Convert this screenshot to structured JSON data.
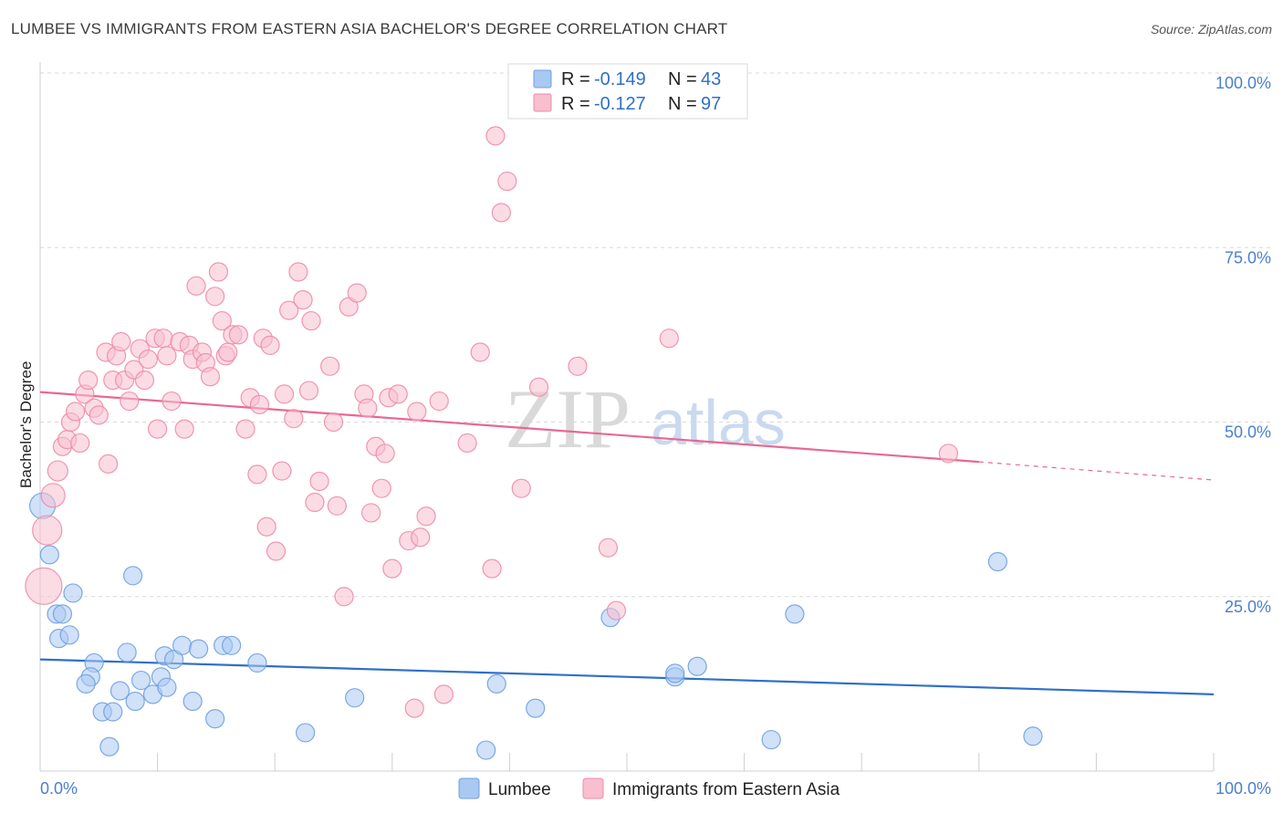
{
  "header": {
    "title": "LUMBEE VS IMMIGRANTS FROM EASTERN ASIA BACHELOR'S DEGREE CORRELATION CHART",
    "source": "Source: ZipAtlas.com"
  },
  "watermark": {
    "zip": "ZIP",
    "atlas": "atlas"
  },
  "legend": {
    "r_label": "R =",
    "n_label": "N =",
    "rows": [
      {
        "r": "-0.149",
        "n": "43",
        "color": "#a9c8f2"
      },
      {
        "r": "-0.127",
        "n": "97",
        "color": "#f7bfd0"
      }
    ]
  },
  "bottom_legend": [
    {
      "label": "Lumbee",
      "color": "#a9c8f2"
    },
    {
      "label": "Immigrants from Eastern Asia",
      "color": "#f7bfd0"
    }
  ],
  "chart_data": {
    "type": "scatter",
    "xlabel": "",
    "ylabel": "Bachelor's Degree",
    "xlim": [
      0,
      100
    ],
    "ylim": [
      0,
      100
    ],
    "x_tick_labels": [
      "0.0%",
      "100.0%"
    ],
    "y_ticks": [
      25,
      50,
      75,
      100
    ],
    "y_tick_labels": [
      "25.0%",
      "50.0%",
      "75.0%",
      "100.0%"
    ],
    "grid": "horizontal dashed",
    "series": [
      {
        "name": "Lumbee",
        "color": "#6fa0e0",
        "fill": "#a9c8f2",
        "trend": {
          "x0": 0,
          "y0": 16.0,
          "x1": 100,
          "y1": 11.0,
          "color": "#2f6fc9"
        },
        "points": [
          {
            "x": 0.2,
            "y": 38.0,
            "s": 14
          },
          {
            "x": 0.8,
            "y": 31.0,
            "s": 10
          },
          {
            "x": 2.8,
            "y": 25.5,
            "s": 10
          },
          {
            "x": 1.4,
            "y": 22.5,
            "s": 10
          },
          {
            "x": 1.9,
            "y": 22.5,
            "s": 10
          },
          {
            "x": 1.6,
            "y": 19.0,
            "s": 10
          },
          {
            "x": 2.5,
            "y": 19.5,
            "s": 10
          },
          {
            "x": 7.9,
            "y": 28.0,
            "s": 10
          },
          {
            "x": 7.4,
            "y": 17.0,
            "s": 10
          },
          {
            "x": 4.6,
            "y": 15.5,
            "s": 10
          },
          {
            "x": 4.3,
            "y": 13.5,
            "s": 10
          },
          {
            "x": 3.9,
            "y": 12.5,
            "s": 10
          },
          {
            "x": 5.3,
            "y": 8.5,
            "s": 10
          },
          {
            "x": 6.2,
            "y": 8.5,
            "s": 10
          },
          {
            "x": 6.8,
            "y": 11.5,
            "s": 10
          },
          {
            "x": 8.1,
            "y": 10.0,
            "s": 10
          },
          {
            "x": 8.6,
            "y": 13.0,
            "s": 10
          },
          {
            "x": 9.6,
            "y": 11.0,
            "s": 10
          },
          {
            "x": 10.3,
            "y": 13.5,
            "s": 10
          },
          {
            "x": 10.6,
            "y": 16.5,
            "s": 10
          },
          {
            "x": 11.4,
            "y": 16.0,
            "s": 10
          },
          {
            "x": 10.8,
            "y": 12.0,
            "s": 10
          },
          {
            "x": 12.1,
            "y": 18.0,
            "s": 10
          },
          {
            "x": 13.0,
            "y": 10.0,
            "s": 10
          },
          {
            "x": 13.5,
            "y": 17.5,
            "s": 10
          },
          {
            "x": 14.9,
            "y": 7.5,
            "s": 10
          },
          {
            "x": 15.6,
            "y": 18.0,
            "s": 10
          },
          {
            "x": 16.3,
            "y": 18.0,
            "s": 10
          },
          {
            "x": 18.5,
            "y": 15.5,
            "s": 10
          },
          {
            "x": 5.9,
            "y": 3.5,
            "s": 10
          },
          {
            "x": 22.6,
            "y": 5.5,
            "s": 10
          },
          {
            "x": 26.8,
            "y": 10.5,
            "s": 10
          },
          {
            "x": 38.0,
            "y": 3.0,
            "s": 10
          },
          {
            "x": 38.9,
            "y": 12.5,
            "s": 10
          },
          {
            "x": 42.2,
            "y": 9.0,
            "s": 10
          },
          {
            "x": 48.6,
            "y": 22.0,
            "s": 10
          },
          {
            "x": 54.1,
            "y": 13.5,
            "s": 10
          },
          {
            "x": 54.1,
            "y": 14.0,
            "s": 10
          },
          {
            "x": 56.0,
            "y": 15.0,
            "s": 10
          },
          {
            "x": 62.3,
            "y": 4.5,
            "s": 10
          },
          {
            "x": 64.3,
            "y": 22.5,
            "s": 10
          },
          {
            "x": 81.6,
            "y": 30.0,
            "s": 10
          },
          {
            "x": 84.6,
            "y": 5.0,
            "s": 10
          }
        ]
      },
      {
        "name": "Immigrants from Eastern Asia",
        "color": "#f08aa8",
        "fill": "#f7bfd0",
        "trend": {
          "x0": 0,
          "y0": 54.3,
          "x1": 80,
          "y1": 44.3,
          "dash_to_x": 100,
          "dash_to_y": 41.7,
          "color": "#e86890"
        },
        "points": [
          {
            "x": 0.3,
            "y": 26.5,
            "s": 20
          },
          {
            "x": 0.6,
            "y": 34.5,
            "s": 16
          },
          {
            "x": 1.1,
            "y": 39.5,
            "s": 13
          },
          {
            "x": 1.5,
            "y": 43.0,
            "s": 11
          },
          {
            "x": 1.9,
            "y": 46.5,
            "s": 10
          },
          {
            "x": 2.3,
            "y": 47.5,
            "s": 10
          },
          {
            "x": 2.6,
            "y": 50.0,
            "s": 10
          },
          {
            "x": 3.0,
            "y": 51.5,
            "s": 10
          },
          {
            "x": 3.4,
            "y": 47.0,
            "s": 10
          },
          {
            "x": 3.8,
            "y": 54.0,
            "s": 10
          },
          {
            "x": 4.1,
            "y": 56.0,
            "s": 10
          },
          {
            "x": 4.6,
            "y": 52.0,
            "s": 10
          },
          {
            "x": 5.0,
            "y": 51.0,
            "s": 10
          },
          {
            "x": 5.6,
            "y": 60.0,
            "s": 10
          },
          {
            "x": 5.8,
            "y": 44.0,
            "s": 10
          },
          {
            "x": 6.2,
            "y": 56.0,
            "s": 10
          },
          {
            "x": 6.5,
            "y": 59.5,
            "s": 10
          },
          {
            "x": 6.9,
            "y": 61.5,
            "s": 10
          },
          {
            "x": 7.2,
            "y": 56.0,
            "s": 10
          },
          {
            "x": 7.6,
            "y": 53.0,
            "s": 10
          },
          {
            "x": 8.0,
            "y": 57.5,
            "s": 10
          },
          {
            "x": 8.5,
            "y": 60.5,
            "s": 10
          },
          {
            "x": 8.9,
            "y": 56.0,
            "s": 10
          },
          {
            "x": 9.2,
            "y": 59.0,
            "s": 10
          },
          {
            "x": 9.8,
            "y": 62.0,
            "s": 10
          },
          {
            "x": 10.0,
            "y": 49.0,
            "s": 10
          },
          {
            "x": 10.5,
            "y": 62.0,
            "s": 10
          },
          {
            "x": 10.8,
            "y": 59.5,
            "s": 10
          },
          {
            "x": 11.2,
            "y": 53.0,
            "s": 10
          },
          {
            "x": 11.9,
            "y": 61.5,
            "s": 10
          },
          {
            "x": 12.3,
            "y": 49.0,
            "s": 10
          },
          {
            "x": 12.7,
            "y": 61.0,
            "s": 10
          },
          {
            "x": 13.0,
            "y": 59.0,
            "s": 10
          },
          {
            "x": 13.3,
            "y": 69.5,
            "s": 10
          },
          {
            "x": 13.8,
            "y": 60.0,
            "s": 10
          },
          {
            "x": 14.1,
            "y": 58.5,
            "s": 10
          },
          {
            "x": 14.5,
            "y": 56.5,
            "s": 10
          },
          {
            "x": 14.9,
            "y": 68.0,
            "s": 10
          },
          {
            "x": 15.2,
            "y": 71.5,
            "s": 10
          },
          {
            "x": 15.5,
            "y": 64.5,
            "s": 10
          },
          {
            "x": 15.8,
            "y": 59.5,
            "s": 10
          },
          {
            "x": 16.0,
            "y": 60.0,
            "s": 10
          },
          {
            "x": 16.4,
            "y": 62.5,
            "s": 10
          },
          {
            "x": 16.9,
            "y": 62.5,
            "s": 10
          },
          {
            "x": 17.5,
            "y": 49.0,
            "s": 10
          },
          {
            "x": 17.9,
            "y": 53.5,
            "s": 10
          },
          {
            "x": 18.5,
            "y": 42.5,
            "s": 10
          },
          {
            "x": 18.7,
            "y": 52.5,
            "s": 10
          },
          {
            "x": 19.0,
            "y": 62.0,
            "s": 10
          },
          {
            "x": 19.3,
            "y": 35.0,
            "s": 10
          },
          {
            "x": 19.6,
            "y": 61.0,
            "s": 10
          },
          {
            "x": 20.1,
            "y": 31.5,
            "s": 10
          },
          {
            "x": 20.6,
            "y": 43.0,
            "s": 10
          },
          {
            "x": 20.8,
            "y": 54.0,
            "s": 10
          },
          {
            "x": 21.2,
            "y": 66.0,
            "s": 10
          },
          {
            "x": 21.6,
            "y": 50.5,
            "s": 10
          },
          {
            "x": 22.0,
            "y": 71.5,
            "s": 10
          },
          {
            "x": 22.4,
            "y": 67.5,
            "s": 10
          },
          {
            "x": 22.9,
            "y": 54.5,
            "s": 10
          },
          {
            "x": 23.1,
            "y": 64.5,
            "s": 10
          },
          {
            "x": 23.4,
            "y": 38.5,
            "s": 10
          },
          {
            "x": 23.8,
            "y": 41.5,
            "s": 10
          },
          {
            "x": 24.7,
            "y": 58.0,
            "s": 10
          },
          {
            "x": 25.0,
            "y": 50.0,
            "s": 10
          },
          {
            "x": 25.3,
            "y": 38.0,
            "s": 10
          },
          {
            "x": 25.9,
            "y": 25.0,
            "s": 10
          },
          {
            "x": 26.3,
            "y": 66.5,
            "s": 10
          },
          {
            "x": 27.0,
            "y": 68.5,
            "s": 10
          },
          {
            "x": 27.6,
            "y": 54.0,
            "s": 10
          },
          {
            "x": 27.9,
            "y": 52.0,
            "s": 10
          },
          {
            "x": 28.2,
            "y": 37.0,
            "s": 10
          },
          {
            "x": 28.6,
            "y": 46.5,
            "s": 10
          },
          {
            "x": 29.1,
            "y": 40.5,
            "s": 10
          },
          {
            "x": 29.4,
            "y": 45.5,
            "s": 10
          },
          {
            "x": 29.7,
            "y": 53.5,
            "s": 10
          },
          {
            "x": 30.0,
            "y": 29.0,
            "s": 10
          },
          {
            "x": 30.5,
            "y": 54.0,
            "s": 10
          },
          {
            "x": 31.4,
            "y": 33.0,
            "s": 10
          },
          {
            "x": 32.1,
            "y": 51.5,
            "s": 10
          },
          {
            "x": 32.4,
            "y": 33.5,
            "s": 10
          },
          {
            "x": 32.9,
            "y": 36.5,
            "s": 10
          },
          {
            "x": 31.9,
            "y": 9.0,
            "s": 10
          },
          {
            "x": 34.0,
            "y": 53.0,
            "s": 10
          },
          {
            "x": 34.4,
            "y": 11.0,
            "s": 10
          },
          {
            "x": 36.4,
            "y": 47.0,
            "s": 10
          },
          {
            "x": 37.5,
            "y": 60.0,
            "s": 10
          },
          {
            "x": 38.5,
            "y": 29.0,
            "s": 10
          },
          {
            "x": 38.8,
            "y": 91.0,
            "s": 10
          },
          {
            "x": 39.3,
            "y": 80.0,
            "s": 10
          },
          {
            "x": 39.8,
            "y": 84.5,
            "s": 10
          },
          {
            "x": 41.0,
            "y": 40.5,
            "s": 10
          },
          {
            "x": 42.5,
            "y": 55.0,
            "s": 10
          },
          {
            "x": 45.8,
            "y": 58.0,
            "s": 10
          },
          {
            "x": 48.4,
            "y": 32.0,
            "s": 10
          },
          {
            "x": 49.1,
            "y": 23.0,
            "s": 10
          },
          {
            "x": 53.6,
            "y": 62.0,
            "s": 10
          },
          {
            "x": 77.4,
            "y": 45.5,
            "s": 10
          }
        ]
      }
    ]
  }
}
